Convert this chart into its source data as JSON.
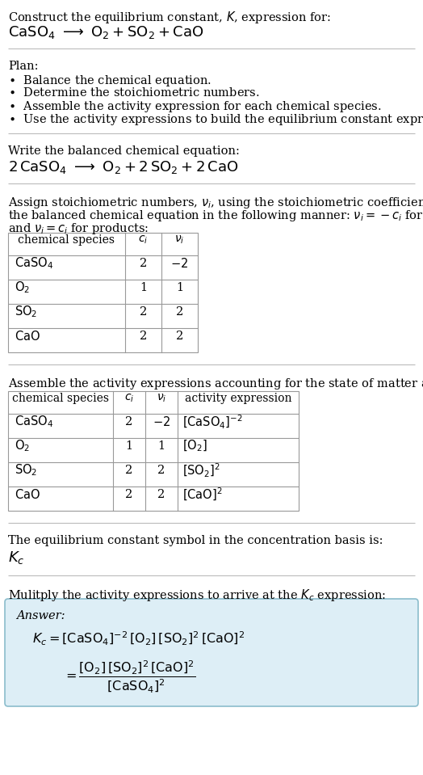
{
  "bg_color": "#ffffff",
  "box_bg_color": "#ddeef6",
  "box_edge_color": "#8bbccc",
  "text_color": "#000000",
  "table_border_color": "#999999",
  "separator_color": "#bbbbbb",
  "font_size": 10.5,
  "small_font_size": 10.0,
  "title_font_size": 11.0,
  "eq_font_size": 13.0
}
